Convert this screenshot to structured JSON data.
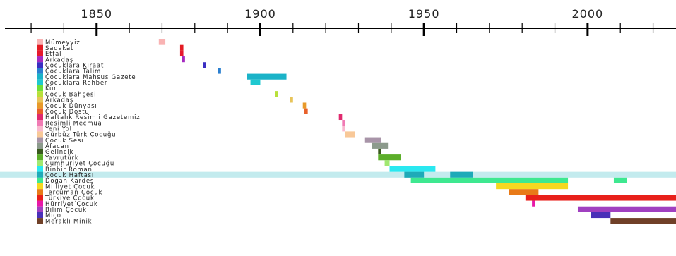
{
  "chart_data": {
    "type": "timeline",
    "xlim": [
      1822,
      2027
    ],
    "major_ticks": [
      1850,
      1900,
      1950,
      2000
    ],
    "minor_step": 10,
    "grid": false,
    "highlight_row": "Çocuk Haftası",
    "highlight_color": "#c3ebee",
    "rows": [
      {
        "name": "Mümeyyiz",
        "color": "#f9b3b3",
        "ranges": [
          [
            1869,
            1871
          ]
        ]
      },
      {
        "name": "Sadakat",
        "color": "#e31b23",
        "ranges": [
          [
            1875.5,
            1876.5
          ]
        ]
      },
      {
        "name": "Etfal",
        "color": "#e6192d",
        "ranges": [
          [
            1875.5,
            1876.5
          ]
        ]
      },
      {
        "name": "Arkadaş",
        "color": "#a52ac0",
        "ranges": [
          [
            1876,
            1877
          ]
        ]
      },
      {
        "name": "Çocuklara Kıraat",
        "color": "#3a2ec2",
        "ranges": [
          [
            1882.5,
            1883.5
          ]
        ]
      },
      {
        "name": "Çocuklara Talim",
        "color": "#2a7fd0",
        "ranges": [
          [
            1887,
            1888
          ]
        ]
      },
      {
        "name": "Çocuklara Mahsus Gazete",
        "color": "#1bb3c8",
        "ranges": [
          [
            1896,
            1908
          ]
        ]
      },
      {
        "name": "Çocuklara Rehber",
        "color": "#1ec8d0",
        "ranges": [
          [
            1897,
            1900
          ]
        ]
      },
      {
        "name": "Kür",
        "color": "#6fde3a",
        "ranges": []
      },
      {
        "name": "Çocuk Bahçesi",
        "color": "#b8e03a",
        "ranges": [
          [
            1904.5,
            1905.5
          ]
        ]
      },
      {
        "name": "Arkadaş",
        "color": "#e8c45a",
        "ranges": [
          [
            1909,
            1910
          ]
        ]
      },
      {
        "name": "Çocuk Dünyası",
        "color": "#e89a2a",
        "ranges": [
          [
            1913,
            1914
          ]
        ]
      },
      {
        "name": "Çocuk Dostu",
        "color": "#e8602a",
        "ranges": [
          [
            1913.5,
            1914.5
          ]
        ]
      },
      {
        "name": "Haftalık Resimli Gazetemiz",
        "color": "#e02a6e",
        "ranges": [
          [
            1924,
            1925
          ]
        ]
      },
      {
        "name": "Resimli Mecmua",
        "color": "#f07ab4",
        "ranges": [
          [
            1925,
            1926
          ]
        ]
      },
      {
        "name": "Yeni Yol",
        "color": "#f9b8cf",
        "ranges": [
          [
            1925,
            1926
          ]
        ]
      },
      {
        "name": "Gürbüz Türk Çocuğu",
        "color": "#f8c898",
        "ranges": [
          [
            1926,
            1929
          ]
        ]
      },
      {
        "name": "Çocuk Sesi",
        "color": "#a894a8",
        "ranges": [
          [
            1932,
            1937
          ]
        ]
      },
      {
        "name": "Afacan",
        "color": "#8c9a8c",
        "ranges": [
          [
            1934,
            1939
          ]
        ]
      },
      {
        "name": "Gelincik",
        "color": "#3a5a1e",
        "ranges": [
          [
            1936,
            1937
          ]
        ]
      },
      {
        "name": "Yavrutürk",
        "color": "#5cae2a",
        "ranges": [
          [
            1936,
            1943
          ]
        ]
      },
      {
        "name": "Cumhuriyet Çocuğu",
        "color": "#a0e870",
        "ranges": [
          [
            1938,
            1939.5
          ]
        ]
      },
      {
        "name": "Binbir Roman",
        "color": "#2ae8f0",
        "ranges": [
          [
            1939.5,
            1953.5
          ]
        ]
      },
      {
        "name": "Çocuk Haftası",
        "color": "#1eaab8",
        "ranges": [
          [
            1944,
            1950
          ],
          [
            1958,
            1965
          ]
        ]
      },
      {
        "name": "Doğan Kardeş",
        "color": "#3ee890",
        "ranges": [
          [
            1946,
            1994
          ],
          [
            2008,
            2012
          ]
        ]
      },
      {
        "name": "Milliyet Çocuk",
        "color": "#f6d820",
        "ranges": [
          [
            1972,
            1994
          ]
        ]
      },
      {
        "name": "Tercüman Çocuk",
        "color": "#e87a18",
        "ranges": [
          [
            1976,
            1985
          ]
        ]
      },
      {
        "name": "Türkiye Çocuk",
        "color": "#e8201a",
        "ranges": [
          [
            1981,
            2027
          ]
        ]
      },
      {
        "name": "Hürriyet Çocuk",
        "color": "#e818a8",
        "ranges": [
          [
            1983,
            1984
          ]
        ]
      },
      {
        "name": "Bilim Çocuk",
        "color": "#a040c0",
        "ranges": [
          [
            1997,
            2027
          ]
        ]
      },
      {
        "name": "Miço",
        "color": "#4a30b8",
        "ranges": [
          [
            2001,
            2007
          ]
        ]
      },
      {
        "name": "Meraklı Minik",
        "color": "#704028",
        "ranges": [
          [
            2007,
            2027
          ]
        ]
      }
    ]
  }
}
